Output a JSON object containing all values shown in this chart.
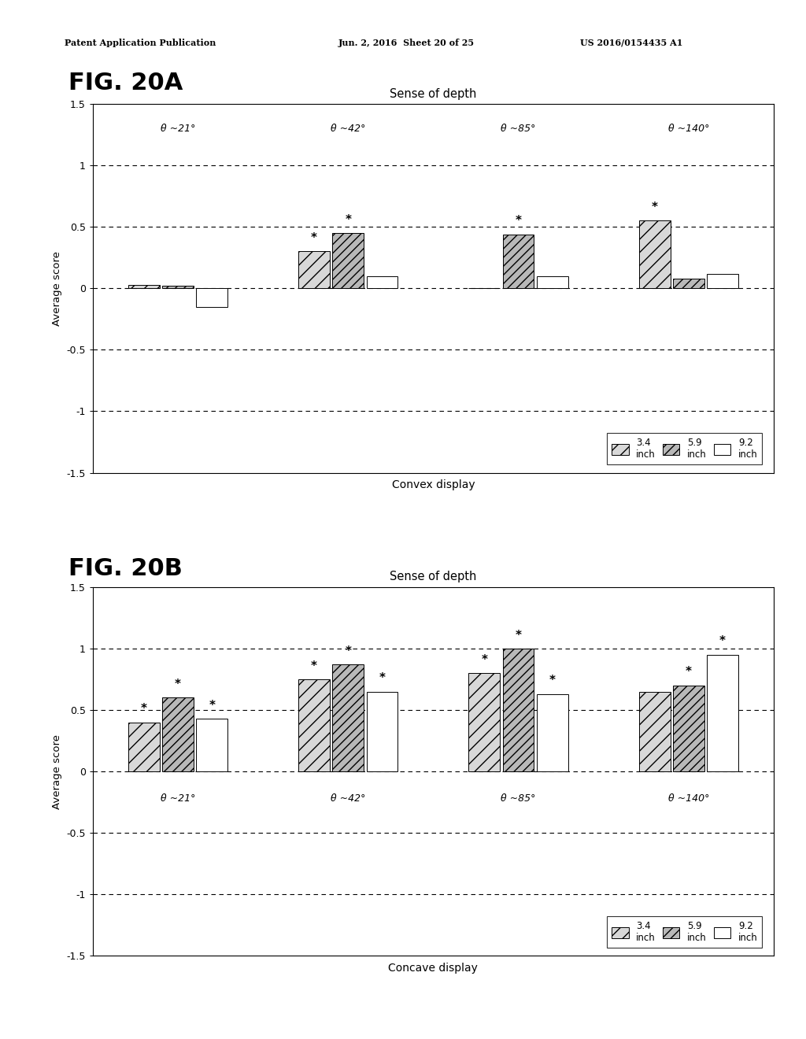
{
  "fig_A_label": "FIG. 20A",
  "fig_B_label": "FIG. 20B",
  "chart_title": "Sense of depth",
  "ylabel": "Average score",
  "xlabel_A": "Convex display",
  "xlabel_B": "Concave display",
  "groups": [
    "θ ~21°",
    "θ ~42°",
    "θ ~85°",
    "θ ~140°"
  ],
  "legend_labels_line1": [
    "3.4",
    "5.9",
    "9.2"
  ],
  "legend_labels_line2": [
    "inch",
    "inch",
    "inch"
  ],
  "ylim": [
    -1.5,
    1.5
  ],
  "yticks": [
    -1.5,
    -1.0,
    -0.5,
    0.0,
    0.5,
    1.0,
    1.5
  ],
  "ytick_labels": [
    "-1.5",
    "-1",
    "-0.5",
    "0",
    "0.5",
    "1",
    "1.5"
  ],
  "dashed_y": [
    -1.0,
    -0.5,
    0.0,
    0.5,
    1.0
  ],
  "data_A": [
    [
      0.03,
      0.02,
      -0.15
    ],
    [
      0.3,
      0.45,
      0.1
    ],
    [
      0.0,
      0.44,
      0.1
    ],
    [
      0.55,
      0.08,
      0.12
    ]
  ],
  "data_B": [
    [
      0.4,
      0.6,
      0.43
    ],
    [
      0.75,
      0.87,
      0.65
    ],
    [
      0.8,
      1.0,
      0.63
    ],
    [
      0.65,
      0.7,
      0.95
    ]
  ],
  "star_A": [
    [
      false,
      false,
      false
    ],
    [
      true,
      true,
      false
    ],
    [
      false,
      true,
      false
    ],
    [
      true,
      false,
      false
    ]
  ],
  "star_B": [
    [
      true,
      true,
      true
    ],
    [
      true,
      true,
      true
    ],
    [
      true,
      true,
      true
    ],
    [
      false,
      true,
      true
    ]
  ],
  "fill_colors": [
    "#d8d8d8",
    "#b8b8b8",
    "#ffffff"
  ],
  "hatches": [
    "//",
    "///",
    ""
  ],
  "header_left": "Patent Application Publication",
  "header_mid": "Jun. 2, 2016  Sheet 20 of 25",
  "header_right": "US 2016/0154435 A1"
}
